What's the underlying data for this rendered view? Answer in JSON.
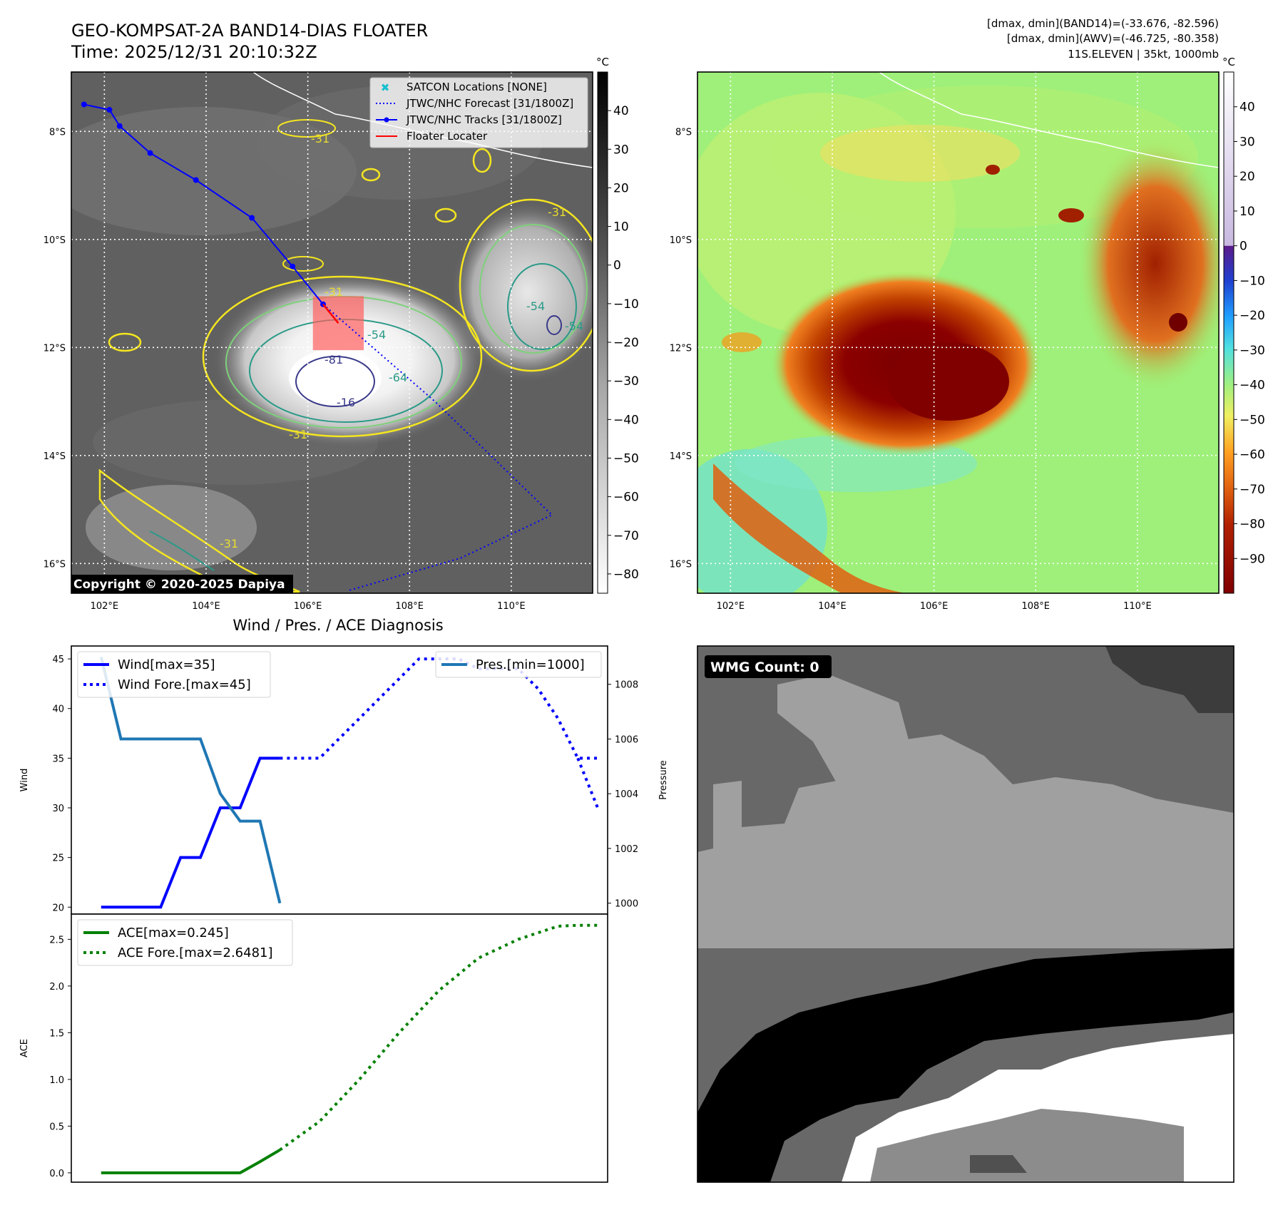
{
  "header": {
    "title": "GEO-KOMPSAT-2A BAND14-DIAS FLOATER",
    "time": "Time: 2025/12/31 20:10:32Z",
    "info_line1": "[dmax, dmin](BAND14)=(-33.676, -82.596)",
    "info_line2": "[dmax, dmin](AWV)=(-46.725, -80.358)",
    "info_line3": "11S.ELEVEN | 35kt, 1000mb"
  },
  "map": {
    "lon_ticks": [
      "102°E",
      "104°E",
      "106°E",
      "108°E",
      "110°E"
    ],
    "lat_ticks": [
      "8°S",
      "10°S",
      "12°S",
      "14°S",
      "16°S"
    ],
    "lon_values": [
      102,
      104,
      106,
      108,
      110
    ],
    "lat_values": [
      -8,
      -10,
      -12,
      -14,
      -16
    ],
    "contour_labels": [
      "-31",
      "-31",
      "-31",
      "-54",
      "-54",
      "-54",
      "-64",
      "-81",
      "-16",
      "-31",
      "-31"
    ],
    "copyright": "Copyright © 2020-2025 Dapiya",
    "legend": [
      {
        "label": "SATCON Locations [NONE]",
        "color": "#17becf",
        "style": "x"
      },
      {
        "label": "JTWC/NHC Forecast [31/1800Z]",
        "color": "#0000ff",
        "style": "dotted"
      },
      {
        "label": "JTWC/NHC Tracks [31/1800Z]",
        "color": "#0000ff",
        "style": "solid-dot"
      },
      {
        "label": "Floater Locater",
        "color": "#ff0000",
        "style": "solid"
      }
    ],
    "track": [
      {
        "lon": 101.6,
        "lat": -7.5
      },
      {
        "lon": 102.1,
        "lat": -7.6
      },
      {
        "lon": 102.3,
        "lat": -7.9
      },
      {
        "lon": 102.9,
        "lat": -8.4
      },
      {
        "lon": 103.8,
        "lat": -8.9
      },
      {
        "lon": 104.9,
        "lat": -9.6
      },
      {
        "lon": 105.7,
        "lat": -10.5
      },
      {
        "lon": 106.3,
        "lat": -11.2
      }
    ],
    "forecast": [
      {
        "lon": 106.3,
        "lat": -11.2
      },
      {
        "lon": 108.5,
        "lat": -13.0
      },
      {
        "lon": 110.8,
        "lat": -15.1
      },
      {
        "lon": 109.0,
        "lat": -15.9
      },
      {
        "lon": 106.8,
        "lat": -16.5
      }
    ],
    "floater_box": {
      "lon_min": 106.1,
      "lon_max": 107.1,
      "lat_min": -12.05,
      "lat_max": -11.05
    },
    "floater_line": [
      {
        "lon": 106.3,
        "lat": -11.2
      },
      {
        "lon": 106.6,
        "lat": -11.55
      }
    ]
  },
  "colorbar_ir": {
    "unit": "°C",
    "ticks": [
      "40",
      "30",
      "20",
      "10",
      "0",
      "−10",
      "−20",
      "−30",
      "−40",
      "−50",
      "−60",
      "−70",
      "−80"
    ],
    "values": [
      40,
      30,
      20,
      10,
      0,
      -10,
      -20,
      -30,
      -40,
      -50,
      -60,
      -70,
      -80
    ],
    "range": [
      -85,
      50
    ]
  },
  "colorbar_awv": {
    "unit": "°C",
    "ticks": [
      "40",
      "30",
      "20",
      "10",
      "0",
      "−10",
      "−20",
      "−30",
      "−40",
      "−50",
      "−60",
      "−70",
      "−80",
      "−90"
    ],
    "values": [
      40,
      30,
      20,
      10,
      0,
      -10,
      -20,
      -30,
      -40,
      -50,
      -60,
      -70,
      -80,
      -90
    ],
    "range": [
      -100,
      50
    ]
  },
  "wmg": {
    "label": "WMG Count: 0"
  },
  "diagnosis": {
    "title": "Wind / Pres. / ACE Diagnosis"
  },
  "chart_data": [
    {
      "type": "line",
      "title": "Wind / Pres. / ACE Diagnosis",
      "ylabel": "Wind",
      "ylabel_right": "Pressure",
      "ylim": [
        19.3,
        46.3
      ],
      "ylim_right": [
        999.6,
        1009.4
      ],
      "xlim": [
        -0.5,
        26.5
      ],
      "yticks": [
        20,
        25,
        30,
        35,
        40,
        45
      ],
      "yticks_right": [
        1000,
        1002,
        1004,
        1006,
        1008
      ],
      "legend_left": [
        "Wind[max=35]",
        "Wind Fore.[max=45]"
      ],
      "legend_right": [
        "Pres.[min=1000]"
      ],
      "series": [
        {
          "name": "Wind[max=35]",
          "color": "#0000ff",
          "style": "solid",
          "axis": "left",
          "x": [
            1,
            4,
            5,
            6,
            7,
            8,
            9,
            10
          ],
          "y": [
            20,
            20,
            25,
            25,
            30,
            30,
            35,
            35
          ]
        },
        {
          "name": "Wind Fore.[max=45]",
          "color": "#0000ff",
          "style": "dotted",
          "axis": "left",
          "x": [
            10,
            12,
            13,
            14,
            15,
            16,
            17,
            18,
            19,
            20,
            21,
            22,
            23,
            24,
            25,
            26
          ],
          "y": [
            35,
            35,
            37,
            39,
            41,
            43,
            45,
            45,
            45,
            44,
            44,
            44,
            42,
            39,
            35,
            35
          ]
        },
        {
          "name": "Wind Fore.[max=45]",
          "color": "#0000ff",
          "style": "dotted",
          "axis": "left",
          "x": [
            25,
            26
          ],
          "y": [
            35,
            30
          ]
        },
        {
          "name": "Pres.[min=1000]",
          "color": "#1f77b4",
          "style": "solid",
          "axis": "right",
          "x": [
            1,
            2,
            3,
            4,
            5,
            6,
            7,
            8,
            9,
            10
          ],
          "y": [
            1009.0,
            1006.0,
            1006.0,
            1006.0,
            1006.0,
            1006.0,
            1004.0,
            1003.0,
            1003.0,
            1000.0
          ]
        }
      ]
    },
    {
      "type": "line",
      "ylabel": "ACE",
      "ylim": [
        -0.1,
        2.77
      ],
      "xlim": [
        -0.5,
        26.5
      ],
      "yticks": [
        0.0,
        0.5,
        1.0,
        1.5,
        2.0,
        2.5
      ],
      "ytick_labels": [
        "0.0",
        "0.5",
        "1.0",
        "1.5",
        "2.0",
        "2.5"
      ],
      "legend": [
        "ACE[max=0.245]",
        "ACE Fore.[max=2.6481]"
      ],
      "series": [
        {
          "name": "ACE[max=0.245]",
          "color": "#008000",
          "style": "solid",
          "x": [
            1,
            4,
            5,
            6,
            7,
            8,
            9,
            10
          ],
          "y": [
            0.0,
            0.0,
            0.0,
            0.0,
            0.0,
            0.0,
            0.12,
            0.245
          ]
        },
        {
          "name": "ACE Fore.[max=2.6481]",
          "color": "#008000",
          "style": "dotted",
          "x": [
            10,
            12,
            14,
            16,
            18,
            20,
            22,
            24,
            25,
            26
          ],
          "y": [
            0.245,
            0.55,
            1.0,
            1.5,
            1.95,
            2.3,
            2.5,
            2.64,
            2.65,
            2.65
          ]
        }
      ]
    }
  ]
}
